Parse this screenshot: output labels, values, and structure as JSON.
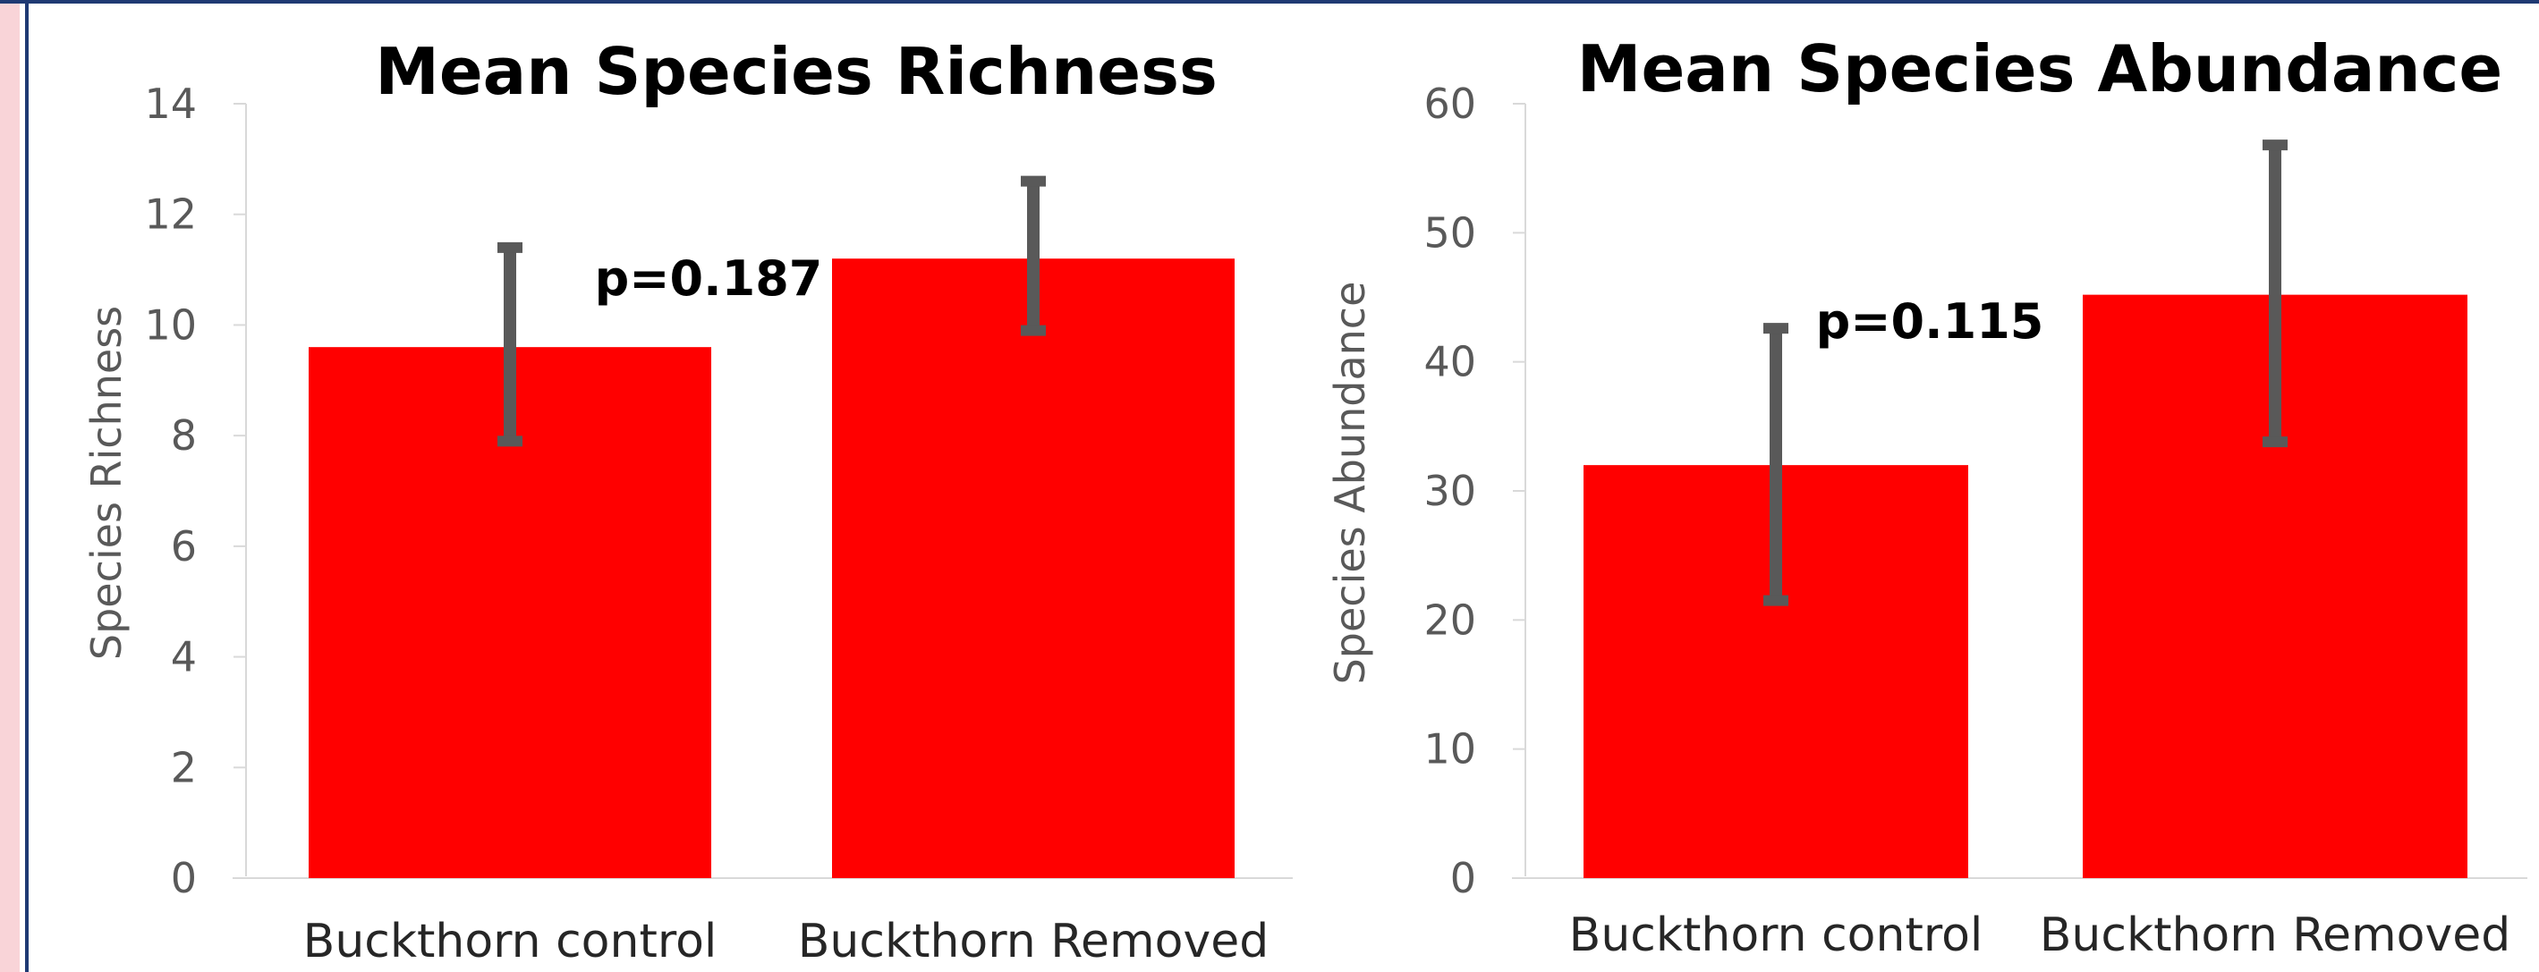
{
  "chart_data": [
    {
      "type": "bar",
      "title": "Mean Species Richness",
      "ylabel": "Species Richness",
      "xlabel": "",
      "categories": [
        "Buckthorn control",
        "Buckthorn Removed"
      ],
      "values": [
        9.6,
        11.2
      ],
      "error_low": [
        7.9,
        9.9
      ],
      "error_high": [
        11.4,
        12.6
      ],
      "ylim": [
        0,
        14
      ],
      "yticks": [
        0,
        2,
        4,
        6,
        8,
        10,
        12,
        14
      ],
      "annotation": "p=0.187",
      "bar_color": "#ff0000",
      "error_color": "#595959",
      "grid": false
    },
    {
      "type": "bar",
      "title": "Mean Species Abundance",
      "ylabel": "Species Abundance",
      "xlabel": "",
      "categories": [
        "Buckthorn control",
        "Buckthorn Removed"
      ],
      "values": [
        32,
        45.2
      ],
      "error_low": [
        21.5,
        33.8
      ],
      "error_high": [
        42.6,
        56.8
      ],
      "ylim": [
        0,
        60
      ],
      "yticks": [
        0,
        10,
        20,
        30,
        40,
        50,
        60
      ],
      "annotation": "p=0.115",
      "bar_color": "#ff0000",
      "error_color": "#595959",
      "grid": false
    }
  ]
}
